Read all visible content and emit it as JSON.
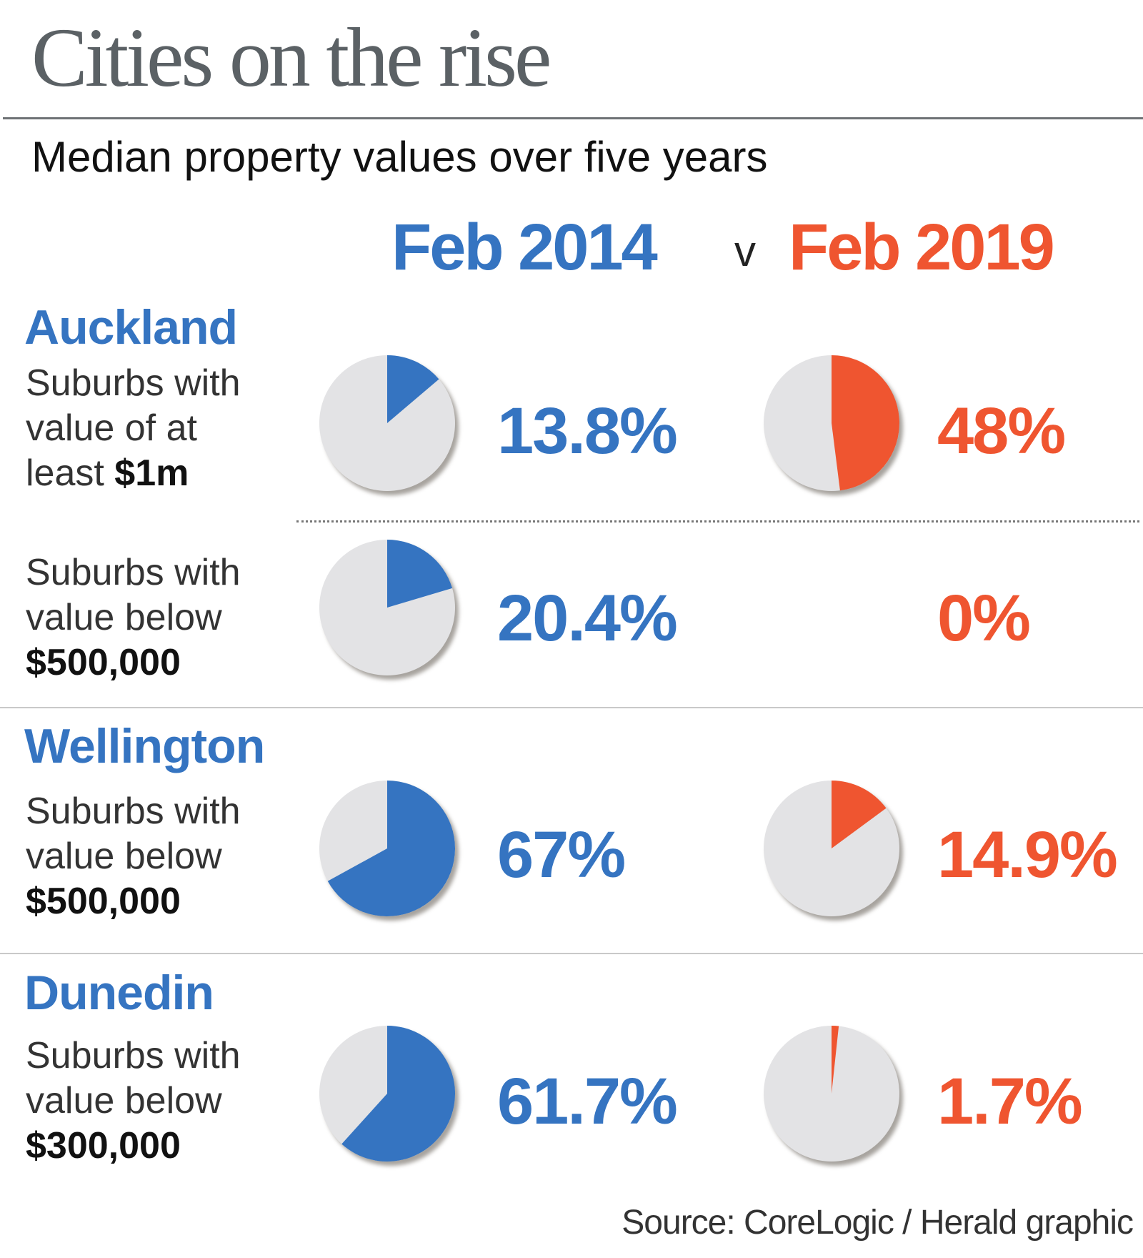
{
  "title": "Cities on the rise",
  "subtitle": "Median property values over five years",
  "legend": {
    "a": "Feb 2014",
    "v": "v",
    "b": "Feb 2019"
  },
  "colors": {
    "a": "#3574c1",
    "b": "#ef5530",
    "rest": "#e3e3e5"
  },
  "rows": [
    {
      "city": "Auckland",
      "line1": "Suburbs with",
      "line2": "value of at",
      "line3a": "least ",
      "line3b": "$1m",
      "a_label": "13.8%",
      "b_label": "48%"
    },
    {
      "city": "",
      "line1": "Suburbs with",
      "line2": "value below",
      "line3a": "",
      "line3b": "$500,000",
      "a_label": "20.4%",
      "b_label": "0%"
    },
    {
      "city": "Wellington",
      "line1": "Suburbs with",
      "line2": "value below",
      "line3a": "",
      "line3b": "$500,000",
      "a_label": "67%",
      "b_label": "14.9%"
    },
    {
      "city": "Dunedin",
      "line1": "Suburbs with",
      "line2": "value below",
      "line3a": "",
      "line3b": "$300,000",
      "a_label": "61.7%",
      "b_label": "1.7%"
    }
  ],
  "source": "Source: CoreLogic / Herald graphic",
  "chart_data": {
    "type": "pie",
    "title": "Cities on the rise",
    "subtitle": "Median property values over five years",
    "series_names": [
      "Feb 2014",
      "Feb 2019"
    ],
    "charts": [
      {
        "group": "Auckland",
        "metric": "Suburbs with value of at least $1m",
        "values": [
          13.8,
          48
        ]
      },
      {
        "group": "Auckland",
        "metric": "Suburbs with value below $500,000",
        "values": [
          20.4,
          0
        ]
      },
      {
        "group": "Wellington",
        "metric": "Suburbs with value below $500,000",
        "values": [
          67,
          14.9
        ]
      },
      {
        "group": "Dunedin",
        "metric": "Suburbs with value below $300,000",
        "values": [
          61.7,
          1.7
        ]
      }
    ]
  }
}
